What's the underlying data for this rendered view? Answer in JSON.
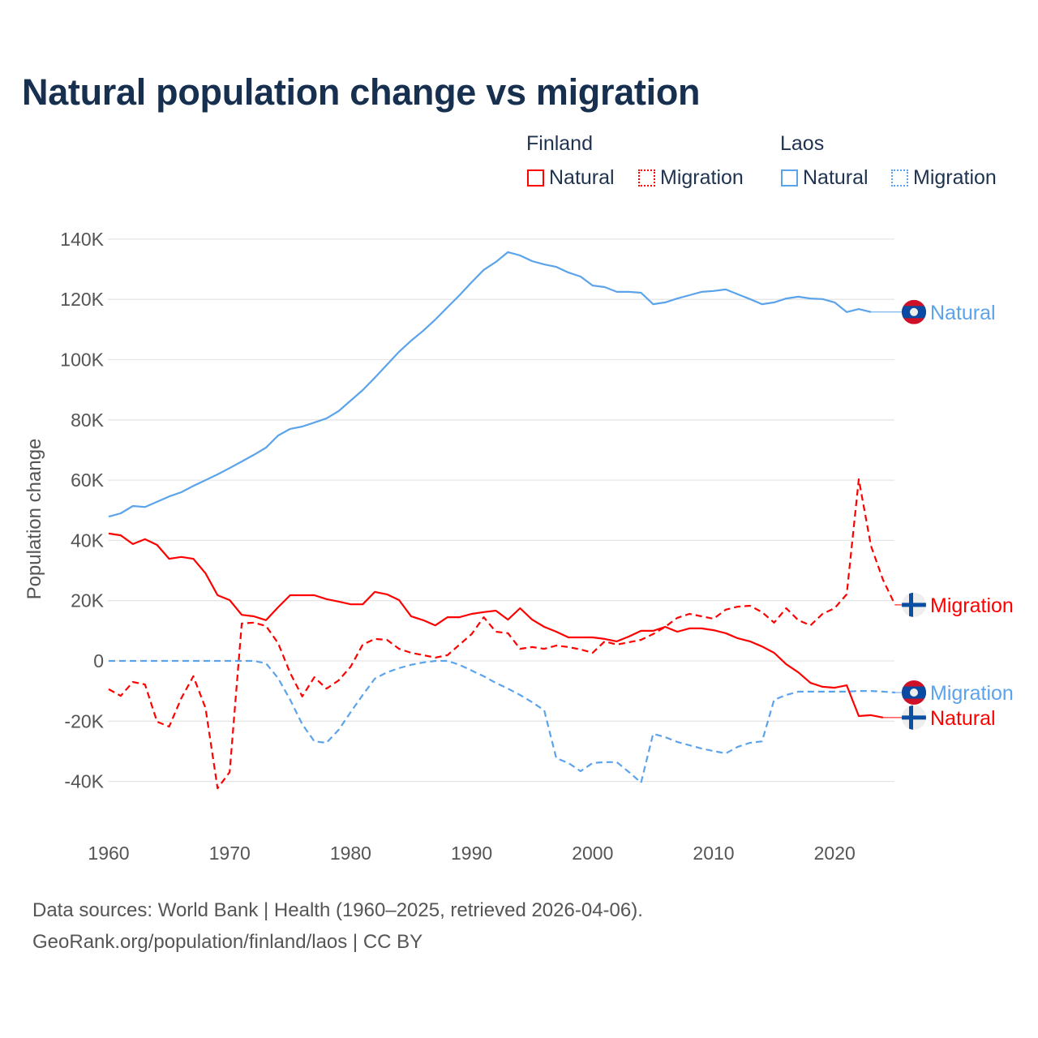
{
  "chart_data": {
    "type": "line",
    "title": "Natural population change vs migration",
    "xlabel": "",
    "ylabel": "Population change",
    "xlim": [
      1960,
      2025
    ],
    "ylim": [
      -40000,
      140000
    ],
    "grid": true,
    "legend_placement": "top-right",
    "x_ticks": [
      "1960",
      "1970",
      "1980",
      "1990",
      "2000",
      "2010",
      "2020"
    ],
    "y_ticks": [
      {
        "value": 140000,
        "label": "140K"
      },
      {
        "value": 120000,
        "label": "120K"
      },
      {
        "value": 100000,
        "label": "100K"
      },
      {
        "value": 80000,
        "label": "80K"
      },
      {
        "value": 60000,
        "label": "60K"
      },
      {
        "value": 40000,
        "label": "40K"
      },
      {
        "value": 20000,
        "label": "20K"
      },
      {
        "value": 0,
        "label": "0"
      },
      {
        "value": -20000,
        "label": "-20K"
      },
      {
        "value": -40000,
        "label": "-40K"
      }
    ],
    "legend": {
      "groups": [
        {
          "title": "Finland",
          "items": [
            {
              "label": "Natural",
              "style": "solid",
              "color": "#ff0000"
            },
            {
              "label": "Migration",
              "style": "dotted",
              "color": "#ff0000"
            }
          ]
        },
        {
          "title": "Laos",
          "items": [
            {
              "label": "Natural",
              "style": "solid",
              "color": "#5ba3ea"
            },
            {
              "label": "Migration",
              "style": "dotted",
              "color": "#5ba3ea"
            }
          ]
        }
      ]
    },
    "series": [
      {
        "name": "Laos Natural",
        "country": "Laos",
        "end_label": "Natural",
        "color": "#5ba3ea",
        "dash": false,
        "start": 1960,
        "flag": "laos",
        "values": [
          47.9,
          49,
          51.4,
          51.1,
          52.8,
          54.6,
          56,
          58.1,
          60,
          61.9,
          64,
          66.2,
          68.4,
          70.8,
          74.8,
          77,
          77.8,
          79.1,
          80.5,
          82.9,
          86.4,
          89.9,
          94,
          98.3,
          102.6,
          106.3,
          109.6,
          113.3,
          117.4,
          121.4,
          125.7,
          129.8,
          132.4,
          135.7,
          134.6,
          132.7,
          131.6,
          130.8,
          128.9,
          127.6,
          124.6,
          124.1,
          122.5,
          122.5,
          122.2,
          118.4,
          119,
          120.3,
          121.4,
          122.5,
          122.8,
          123.3,
          121.7,
          120.1,
          118.4,
          119,
          120.3,
          120.9,
          120.3,
          120.1,
          119,
          115.8,
          116.8,
          115.8
        ]
      },
      {
        "name": "Finland Migration",
        "country": "Finland",
        "end_label": "Migration",
        "color": "#ff0000",
        "dash": true,
        "start": 1960,
        "flag": "finland",
        "values": [
          -9.4,
          -11.6,
          -7,
          -7.8,
          -20.2,
          -21.8,
          -12.4,
          -5.1,
          -15.6,
          -42.3,
          -36.9,
          12.4,
          12.7,
          11.6,
          5.9,
          -4,
          -11.8,
          -5.4,
          -9.2,
          -6.5,
          -1.9,
          5.4,
          7.3,
          7,
          4,
          2.7,
          1.9,
          1.1,
          1.9,
          5.4,
          8.9,
          14.5,
          9.7,
          9.2,
          4,
          4.6,
          4,
          5.1,
          4.6,
          3.8,
          2.7,
          6.5,
          5.4,
          6.2,
          7,
          8.9,
          11.3,
          14.3,
          15.6,
          14.8,
          14,
          17,
          18,
          18.3,
          16.2,
          12.7,
          17.5,
          13.5,
          11.8,
          15.6,
          17.5,
          22.1,
          60.3,
          38.2,
          26.9,
          18.6
        ]
      },
      {
        "name": "Laos Migration",
        "country": "Laos",
        "end_label": "Migration",
        "color": "#5ba3ea",
        "dash": true,
        "start": 1960,
        "flag": "laos",
        "values": [
          0,
          0,
          0,
          0,
          0,
          0,
          0,
          0,
          0,
          0,
          0,
          0,
          0,
          -0.8,
          -5.7,
          -12.9,
          -21,
          -26.7,
          -27.2,
          -22.9,
          -17,
          -11.3,
          -5.9,
          -3.8,
          -2.4,
          -1.3,
          -0.5,
          0,
          0,
          -1.3,
          -3.2,
          -5.1,
          -7.3,
          -9.2,
          -11.3,
          -13.7,
          -16.4,
          -32.3,
          -33.9,
          -36.6,
          -33.9,
          -33.6,
          -33.6,
          -36.9,
          -40.4,
          -24.2,
          -25.3,
          -26.9,
          -28,
          -29.1,
          -29.9,
          -30.7,
          -28.5,
          -27.2,
          -26.7,
          -12.9,
          -11.3,
          -10.2,
          -10.2,
          -10.2,
          -10.2,
          -10.2,
          -10,
          -10,
          -10.2,
          -10.5
        ]
      },
      {
        "name": "Finland Natural",
        "country": "Finland",
        "end_label": "Natural",
        "color": "#ff0000",
        "dash": false,
        "start": 1960,
        "flag": "finland",
        "values": [
          42.3,
          41.7,
          38.8,
          40.4,
          38.5,
          33.9,
          34.5,
          33.9,
          29.1,
          21.8,
          20.2,
          15.3,
          14.8,
          13.5,
          17.8,
          21.8,
          21.8,
          21.8,
          20.5,
          19.7,
          18.8,
          18.8,
          22.9,
          22.1,
          20.2,
          14.8,
          13.5,
          11.8,
          14.5,
          14.5,
          15.6,
          16.2,
          16.7,
          13.7,
          17.5,
          13.7,
          11.3,
          9.7,
          7.8,
          7.8,
          7.8,
          7.3,
          6.5,
          8.1,
          10,
          10,
          11.3,
          9.7,
          10.8,
          10.8,
          10.2,
          9.2,
          7.5,
          6.5,
          4.8,
          2.7,
          -1.1,
          -3.8,
          -7.3,
          -8.6,
          -8.9,
          -8.1,
          -18.3,
          -18,
          -18.8
        ]
      }
    ],
    "value_unit": "thousands"
  },
  "footer": {
    "line1": "Data sources: World Bank | Health (1960–2025, retrieved 2026-04-06).",
    "line2": "GeoRank.org/population/finland/laos | CC BY"
  }
}
